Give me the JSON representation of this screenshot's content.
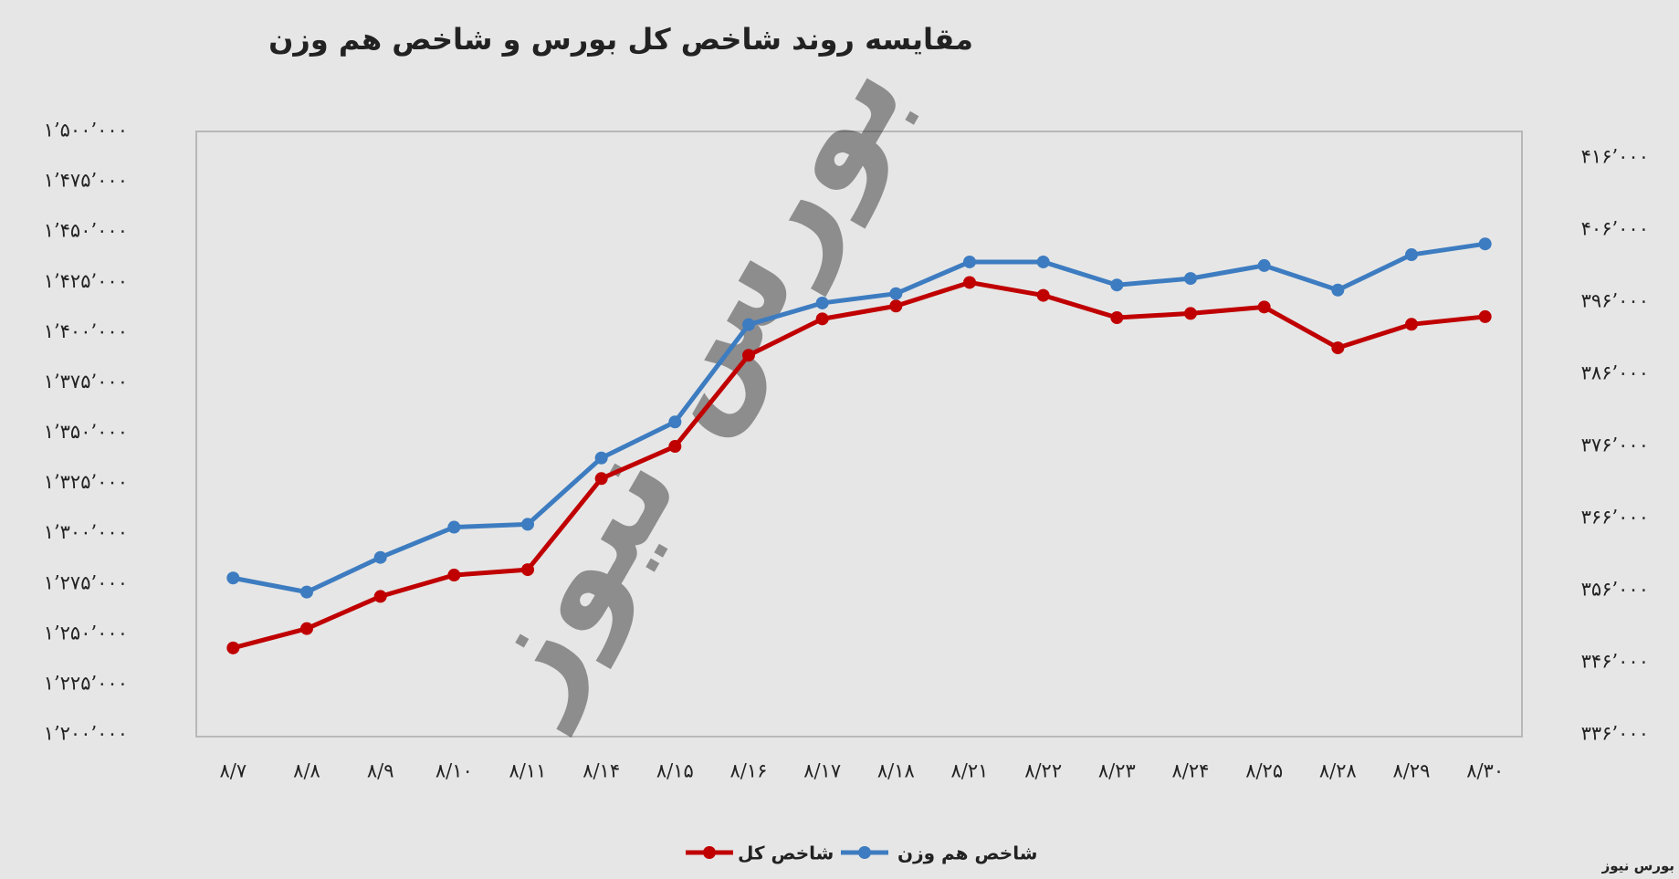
{
  "chart_data": {
    "type": "line",
    "title": "مقایسه روند شاخص کل بورس و شاخص هم وزن",
    "source": "بورس نیوز",
    "categories": [
      "۸/۷",
      "۸/۸",
      "۸/۹",
      "۸/۱۰",
      "۸/۱۱",
      "۸/۱۴",
      "۸/۱۵",
      "۸/۱۶",
      "۸/۱۷",
      "۸/۱۸",
      "۸/۲۱",
      "۸/۲۲",
      "۸/۲۳",
      "۸/۲۴",
      "۸/۲۵",
      "۸/۲۸",
      "۸/۲۹",
      "۸/۳۰"
    ],
    "series": [
      {
        "name": "شاخص کل",
        "color": "#c00000",
        "axis": "y",
        "values": [
          1243200,
          1252800,
          1268800,
          1279400,
          1282100,
          1327400,
          1343400,
          1388700,
          1406800,
          1413200,
          1424900,
          1418500,
          1407400,
          1409500,
          1412700,
          1392400,
          1404100,
          1407900
        ]
      },
      {
        "name": "شاخص هم وزن",
        "color": "#3d7cc0",
        "axis": "y2",
        "values": [
          357750,
          355800,
          360600,
          364800,
          365200,
          374400,
          379400,
          392900,
          395900,
          397200,
          401600,
          401600,
          398400,
          399300,
          401100,
          397700,
          402600,
          404100
        ]
      }
    ],
    "ylim": [
      1200000,
      1500000
    ],
    "yticks": [
      {
        "value": 1200000,
        "label": "۱’۲۰۰’۰۰۰"
      },
      {
        "value": 1225000,
        "label": "۱’۲۲۵’۰۰۰"
      },
      {
        "value": 1250000,
        "label": "۱’۲۵۰’۰۰۰"
      },
      {
        "value": 1275000,
        "label": "۱’۲۷۵’۰۰۰"
      },
      {
        "value": 1300000,
        "label": "۱’۳۰۰’۰۰۰"
      },
      {
        "value": 1325000,
        "label": "۱’۳۲۵’۰۰۰"
      },
      {
        "value": 1350000,
        "label": "۱’۳۵۰’۰۰۰"
      },
      {
        "value": 1375000,
        "label": "۱’۳۷۵’۰۰۰"
      },
      {
        "value": 1400000,
        "label": "۱’۴۰۰’۰۰۰"
      },
      {
        "value": 1425000,
        "label": "۱’۴۲۵’۰۰۰"
      },
      {
        "value": 1450000,
        "label": "۱’۴۵۰’۰۰۰"
      },
      {
        "value": 1475000,
        "label": "۱’۴۷۵’۰۰۰"
      },
      {
        "value": 1500000,
        "label": "۱’۵۰۰’۰۰۰"
      }
    ],
    "y2lim": [
      336000,
      419700
    ],
    "y2ticks": [
      {
        "value": 336000,
        "label": "۳۳۶’۰۰۰"
      },
      {
        "value": 346000,
        "label": "۳۴۶’۰۰۰"
      },
      {
        "value": 356000,
        "label": "۳۵۶’۰۰۰"
      },
      {
        "value": 366000,
        "label": "۳۶۶’۰۰۰"
      },
      {
        "value": 376000,
        "label": "۳۷۶’۰۰۰"
      },
      {
        "value": 386000,
        "label": "۳۸۶’۰۰۰"
      },
      {
        "value": 396000,
        "label": "۳۹۶’۰۰۰"
      },
      {
        "value": 406000,
        "label": "۴۰۶’۰۰۰"
      },
      {
        "value": 416000,
        "label": "۴۱۶’۰۰۰"
      }
    ],
    "grid": false
  }
}
